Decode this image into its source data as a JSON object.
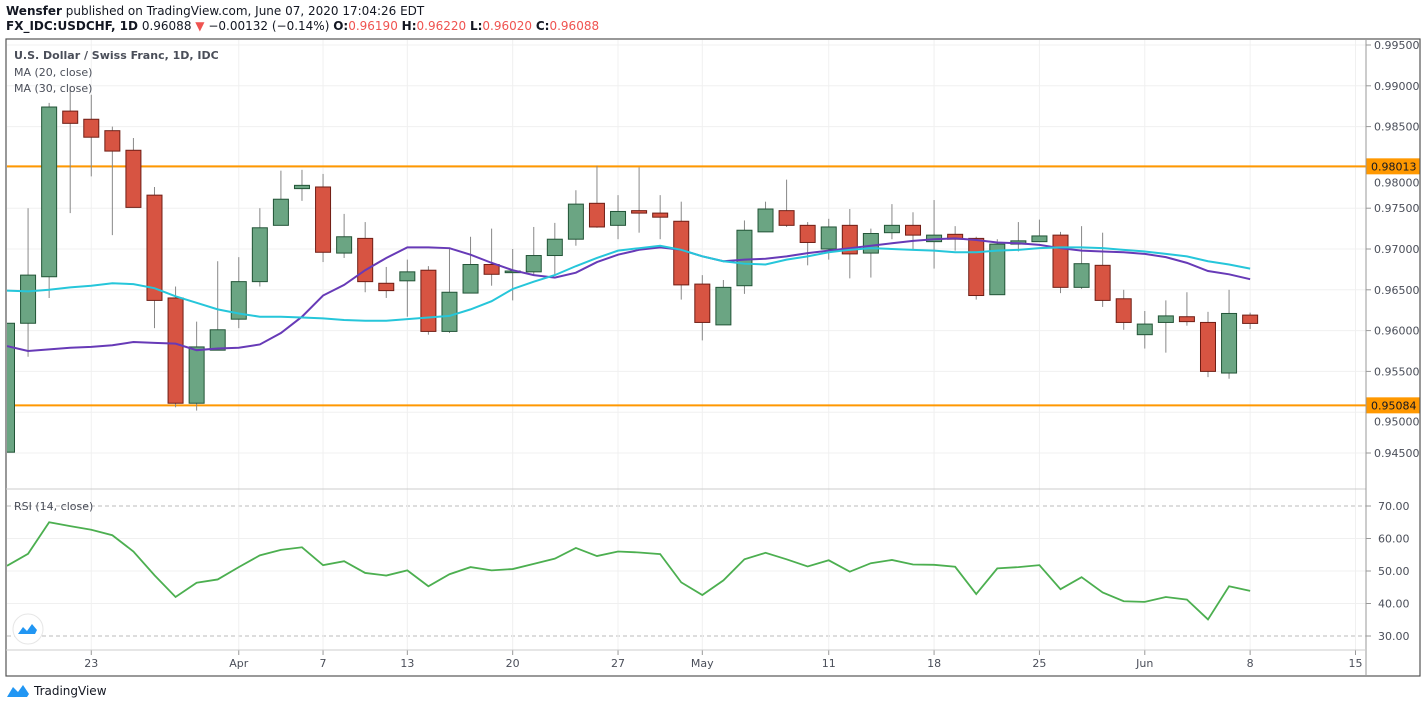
{
  "header": {
    "author": "Wensfer",
    "published": "published on TradingView.com, June 07, 2020 17:04:26 EDT",
    "symbol": "FX_IDC:USDCHF, 1D",
    "last": "0.96088",
    "change": "−0.00132 (−0.14%)",
    "o_label": "O:",
    "o": "0.96190",
    "h_label": "H:",
    "h": "0.96220",
    "l_label": "L:",
    "l": "0.96020",
    "c_label": "C:",
    "c": "0.96088",
    "down_icon": "triangle-down-icon"
  },
  "footer": {
    "brand": "TradingView"
  },
  "chart_data": [
    {
      "type": "candlestick",
      "title": "U.S. Dollar / Swiss Franc, 1D, IDC",
      "legend": [
        "MA (20, close)",
        "MA (30, close)"
      ],
      "ylim": [
        0.944,
        0.998
      ],
      "y_ticks": [
        "0.99500",
        "0.99000",
        "0.98500",
        "0.98000",
        "0.97500",
        "0.97000",
        "0.96500",
        "0.96000",
        "0.95500",
        "0.95000",
        "0.94500"
      ],
      "x_ticks": [
        {
          "i": 4,
          "label": "23"
        },
        {
          "i": 11,
          "label": "Apr"
        },
        {
          "i": 15,
          "label": "7"
        },
        {
          "i": 19,
          "label": "13"
        },
        {
          "i": 24,
          "label": "20"
        },
        {
          "i": 29,
          "label": "27"
        },
        {
          "i": 33,
          "label": "May"
        },
        {
          "i": 39,
          "label": "11"
        },
        {
          "i": 44,
          "label": "18"
        },
        {
          "i": 49,
          "label": "25"
        },
        {
          "i": 54,
          "label": "Jun"
        },
        {
          "i": 59,
          "label": "8"
        },
        {
          "i": 64,
          "label": "15"
        }
      ],
      "grid": true,
      "horizontal_lines": [
        {
          "value": 0.98013,
          "label": "0.98013",
          "color": "#ff9800"
        },
        {
          "value": 0.95084,
          "label": "0.95084",
          "color": "#ff9800"
        }
      ],
      "colors": {
        "up": "#6ba583",
        "up_border": "#225437",
        "down": "#d75442",
        "down_border": "#6f1e15",
        "ma20": "#673ab7",
        "ma30": "#26c6da"
      },
      "ohlc": [
        [
          0.9451,
          0.9609,
          0.9451,
          0.9609
        ],
        [
          0.9609,
          0.975,
          0.9568,
          0.9668
        ],
        [
          0.9666,
          0.9879,
          0.964,
          0.9874
        ],
        [
          0.9869,
          0.9899,
          0.9744,
          0.9854
        ],
        [
          0.9859,
          0.9889,
          0.9789,
          0.9837
        ],
        [
          0.9845,
          0.985,
          0.9717,
          0.982
        ],
        [
          0.9821,
          0.9836,
          0.9751,
          0.9751
        ],
        [
          0.9766,
          0.9776,
          0.9603,
          0.9637
        ],
        [
          0.964,
          0.9654,
          0.9506,
          0.9511
        ],
        [
          0.9511,
          0.9611,
          0.9502,
          0.958
        ],
        [
          0.9576,
          0.9685,
          0.9576,
          0.9601
        ],
        [
          0.9614,
          0.969,
          0.9603,
          0.966
        ],
        [
          0.966,
          0.975,
          0.9654,
          0.9726
        ],
        [
          0.9729,
          0.9796,
          0.9729,
          0.9761
        ],
        [
          0.9774,
          0.9797,
          0.9759,
          0.9778
        ],
        [
          0.9776,
          0.9792,
          0.9684,
          0.9696
        ],
        [
          0.9695,
          0.9743,
          0.9689,
          0.9715
        ],
        [
          0.9713,
          0.9733,
          0.9647,
          0.966
        ],
        [
          0.9658,
          0.9678,
          0.964,
          0.9649
        ],
        [
          0.9661,
          0.9687,
          0.9617,
          0.9672
        ],
        [
          0.9674,
          0.9679,
          0.9595,
          0.9599
        ],
        [
          0.9599,
          0.9701,
          0.9597,
          0.9647
        ],
        [
          0.9646,
          0.9715,
          0.9646,
          0.9681
        ],
        [
          0.9681,
          0.9725,
          0.9655,
          0.9669
        ],
        [
          0.9671,
          0.97,
          0.9637,
          0.9673
        ],
        [
          0.9672,
          0.9727,
          0.9668,
          0.9692
        ],
        [
          0.9692,
          0.9732,
          0.9669,
          0.9712
        ],
        [
          0.9712,
          0.9772,
          0.9704,
          0.9755
        ],
        [
          0.9756,
          0.9802,
          0.9726,
          0.9727
        ],
        [
          0.9729,
          0.9766,
          0.9712,
          0.9746
        ],
        [
          0.9747,
          0.98,
          0.972,
          0.9744
        ],
        [
          0.9744,
          0.9766,
          0.9712,
          0.9739
        ],
        [
          0.9734,
          0.9758,
          0.9638,
          0.9656
        ],
        [
          0.9657,
          0.9668,
          0.9588,
          0.961
        ],
        [
          0.9607,
          0.9662,
          0.9607,
          0.9653
        ],
        [
          0.9655,
          0.9735,
          0.9645,
          0.9723
        ],
        [
          0.9721,
          0.9758,
          0.9721,
          0.9749
        ],
        [
          0.9747,
          0.9785,
          0.9727,
          0.9729
        ],
        [
          0.9729,
          0.9733,
          0.968,
          0.9708
        ],
        [
          0.97,
          0.9737,
          0.9687,
          0.9727
        ],
        [
          0.9729,
          0.9749,
          0.9664,
          0.9694
        ],
        [
          0.9695,
          0.9725,
          0.9665,
          0.9719
        ],
        [
          0.972,
          0.9755,
          0.9712,
          0.9729
        ],
        [
          0.9729,
          0.9745,
          0.9699,
          0.9717
        ],
        [
          0.9709,
          0.976,
          0.9676,
          0.9717
        ],
        [
          0.9718,
          0.9728,
          0.9698,
          0.9712
        ],
        [
          0.9713,
          0.9715,
          0.9638,
          0.9643
        ],
        [
          0.9644,
          0.9712,
          0.9644,
          0.9706
        ],
        [
          0.9706,
          0.9733,
          0.9697,
          0.971
        ],
        [
          0.9709,
          0.9736,
          0.9709,
          0.9716
        ],
        [
          0.9717,
          0.9721,
          0.9646,
          0.9653
        ],
        [
          0.9653,
          0.9728,
          0.9651,
          0.9682
        ],
        [
          0.968,
          0.972,
          0.9629,
          0.9637
        ],
        [
          0.9639,
          0.965,
          0.9601,
          0.961
        ],
        [
          0.9595,
          0.9624,
          0.9578,
          0.9608
        ],
        [
          0.961,
          0.9637,
          0.9573,
          0.9618
        ],
        [
          0.9617,
          0.9647,
          0.9606,
          0.9611
        ],
        [
          0.961,
          0.9623,
          0.9543,
          0.955
        ],
        [
          0.9548,
          0.965,
          0.9541,
          0.9621
        ],
        [
          0.9619,
          0.9622,
          0.9602,
          0.96088
        ]
      ],
      "series": [
        {
          "name": "MA (20, close)",
          "values": [
            0.9581,
            0.9575,
            0.9577,
            0.9579,
            0.958,
            0.9582,
            0.9586,
            0.9585,
            0.9584,
            0.9576,
            0.9578,
            0.9579,
            0.9583,
            0.9597,
            0.9617,
            0.9643,
            0.9656,
            0.9674,
            0.9689,
            0.9702,
            0.9702,
            0.9701,
            0.9693,
            0.9683,
            0.9674,
            0.9668,
            0.9665,
            0.9671,
            0.9684,
            0.9693,
            0.9699,
            0.9702,
            0.9699,
            0.9691,
            0.9685,
            0.9687,
            0.9688,
            0.9691,
            0.9695,
            0.9698,
            0.9701,
            0.9704,
            0.9707,
            0.971,
            0.9712,
            0.9713,
            0.9711,
            0.9708,
            0.9707,
            0.9705,
            0.9701,
            0.9698,
            0.9697,
            0.9696,
            0.9694,
            0.969,
            0.9683,
            0.9673,
            0.9669,
            0.9663
          ]
        },
        {
          "name": "MA (30, close)",
          "values": [
            0.9649,
            0.9648,
            0.965,
            0.9653,
            0.9655,
            0.9658,
            0.9657,
            0.9652,
            0.9642,
            0.9634,
            0.9626,
            0.9621,
            0.9617,
            0.9617,
            0.9616,
            0.9615,
            0.9613,
            0.9612,
            0.9612,
            0.9614,
            0.9616,
            0.9618,
            0.9626,
            0.9636,
            0.9651,
            0.966,
            0.9668,
            0.9679,
            0.9689,
            0.9698,
            0.9701,
            0.9704,
            0.9699,
            0.9691,
            0.9685,
            0.9682,
            0.9681,
            0.9687,
            0.9691,
            0.9696,
            0.9699,
            0.9701,
            0.97,
            0.9699,
            0.9698,
            0.9696,
            0.9696,
            0.9698,
            0.9699,
            0.9701,
            0.9702,
            0.9702,
            0.9701,
            0.9699,
            0.9697,
            0.9694,
            0.9691,
            0.9685,
            0.9681,
            0.9676
          ]
        }
      ]
    },
    {
      "type": "line",
      "title": "RSI (14, close)",
      "ylim": [
        26,
        72
      ],
      "y_ticks": [
        "70.00",
        "60.00",
        "50.00",
        "40.00",
        "30.00"
      ],
      "levels": [
        70,
        30
      ],
      "color": "#4caf50",
      "values": [
        51.6,
        55.3,
        65.0,
        63.8,
        62.7,
        61.0,
        56.0,
        48.7,
        42.0,
        46.4,
        47.4,
        51.2,
        54.8,
        56.5,
        57.3,
        51.8,
        53.0,
        49.4,
        48.6,
        50.2,
        45.3,
        49.0,
        51.2,
        50.2,
        50.6,
        52.2,
        53.8,
        57.1,
        54.6,
        56.0,
        55.7,
        55.2,
        46.5,
        42.6,
        47.1,
        53.6,
        55.6,
        53.6,
        51.4,
        53.3,
        49.8,
        52.4,
        53.4,
        52.0,
        51.9,
        51.3,
        42.9,
        50.8,
        51.2,
        51.8,
        44.4,
        48.1,
        43.4,
        40.7,
        40.5,
        42.0,
        41.2,
        35.1,
        45.3,
        43.9
      ]
    }
  ]
}
